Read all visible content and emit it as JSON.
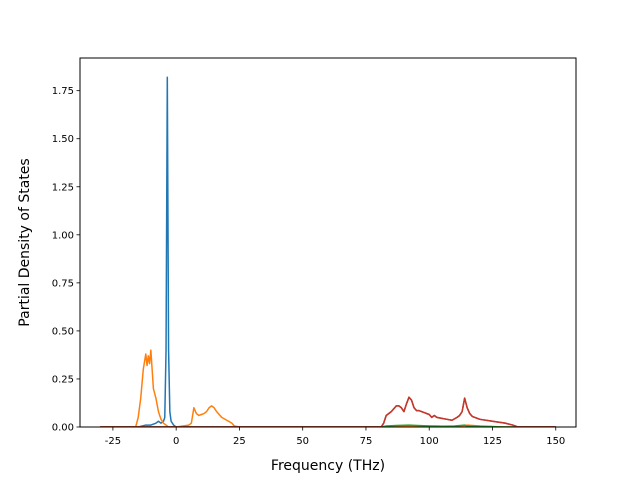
{
  "chart_data": {
    "type": "line",
    "xlabel": "Frequency (THz)",
    "ylabel": "Partial Density of States",
    "xlim": [
      -38,
      158
    ],
    "ylim": [
      0,
      1.92
    ],
    "xticks": [
      "-25",
      "0",
      "25",
      "50",
      "75",
      "100",
      "125",
      "150"
    ],
    "xtick_values": [
      -25,
      0,
      25,
      50,
      75,
      100,
      125,
      150
    ],
    "yticks": [
      "0.00",
      "0.25",
      "0.50",
      "0.75",
      "1.00",
      "1.25",
      "1.50",
      "1.75"
    ],
    "ytick_values": [
      0,
      0.25,
      0.5,
      0.75,
      1.0,
      1.25,
      1.5,
      1.75
    ],
    "grid": false,
    "series": [
      {
        "color": "#1f77b4",
        "x": [
          -30,
          -15,
          -12,
          -10,
          -8,
          -7,
          -6,
          -5,
          -4.5,
          -4,
          -3.5,
          -3,
          -2.5,
          -2,
          -1,
          0,
          2,
          5,
          10,
          20,
          30,
          150
        ],
        "y": [
          0,
          0,
          0.01,
          0.01,
          0.02,
          0.03,
          0.02,
          0.03,
          0.05,
          0.4,
          1.82,
          0.4,
          0.08,
          0.03,
          0.01,
          0,
          0,
          0,
          0,
          0,
          0,
          0
        ]
      },
      {
        "color": "#ff7f0e",
        "x": [
          -30,
          -16,
          -15,
          -14,
          -13,
          -12,
          -11.5,
          -11,
          -10.5,
          -10,
          -9,
          -8,
          -7,
          -6,
          -5,
          -4,
          -3,
          0,
          5,
          6,
          7,
          8,
          9,
          10,
          11,
          12,
          13,
          14,
          15,
          16,
          17,
          18,
          20,
          22,
          23,
          25,
          80,
          85,
          90,
          100,
          110,
          113,
          115,
          120,
          130,
          150
        ],
        "y": [
          0,
          0,
          0.05,
          0.15,
          0.3,
          0.38,
          0.32,
          0.37,
          0.33,
          0.4,
          0.2,
          0.15,
          0.08,
          0.04,
          0.02,
          0.01,
          0,
          0,
          0.01,
          0.02,
          0.1,
          0.07,
          0.06,
          0.065,
          0.07,
          0.08,
          0.1,
          0.11,
          0.1,
          0.08,
          0.065,
          0.05,
          0.035,
          0.02,
          0.005,
          0,
          0,
          0.003,
          0.005,
          0.005,
          0.003,
          0.005,
          0.01,
          0.005,
          0,
          0
        ]
      },
      {
        "color": "#2ca02c",
        "x": [
          -30,
          81,
          83,
          87,
          92,
          100,
          105,
          110,
          114,
          115,
          120,
          130,
          150
        ],
        "y": [
          0,
          0,
          0.005,
          0.008,
          0.01,
          0.005,
          0.004,
          0.005,
          0.01,
          0.005,
          0.003,
          0,
          0
        ]
      },
      {
        "color": "#d62728",
        "x": [
          -30,
          81,
          82,
          83,
          85,
          87,
          88,
          89,
          90,
          91,
          92,
          93,
          94,
          95,
          96,
          98,
          100,
          101,
          102,
          103,
          105,
          107,
          109,
          111,
          112,
          113,
          114,
          115,
          116,
          117,
          120,
          125,
          130,
          133,
          135,
          150
        ],
        "y": [
          0,
          0,
          0.02,
          0.06,
          0.08,
          0.11,
          0.11,
          0.1,
          0.08,
          0.12,
          0.155,
          0.14,
          0.1,
          0.085,
          0.085,
          0.075,
          0.065,
          0.05,
          0.06,
          0.05,
          0.045,
          0.04,
          0.035,
          0.05,
          0.06,
          0.08,
          0.15,
          0.1,
          0.07,
          0.055,
          0.04,
          0.03,
          0.02,
          0.01,
          0,
          0
        ]
      },
      {
        "color": "#c0392b",
        "x": [
          -30,
          81,
          82,
          83,
          85,
          87,
          88,
          89,
          90,
          91,
          92,
          93,
          94,
          95,
          96,
          98,
          100,
          101,
          102,
          103,
          105,
          107,
          109,
          111,
          112,
          113,
          114,
          115,
          116,
          117,
          120,
          125,
          130,
          133,
          135,
          150
        ],
        "y": [
          0,
          0,
          0.02,
          0.06,
          0.08,
          0.11,
          0.11,
          0.1,
          0.08,
          0.12,
          0.155,
          0.14,
          0.1,
          0.085,
          0.085,
          0.075,
          0.065,
          0.05,
          0.06,
          0.05,
          0.045,
          0.04,
          0.035,
          0.05,
          0.06,
          0.08,
          0.15,
          0.1,
          0.07,
          0.055,
          0.04,
          0.03,
          0.02,
          0.01,
          0,
          0
        ]
      }
    ]
  }
}
